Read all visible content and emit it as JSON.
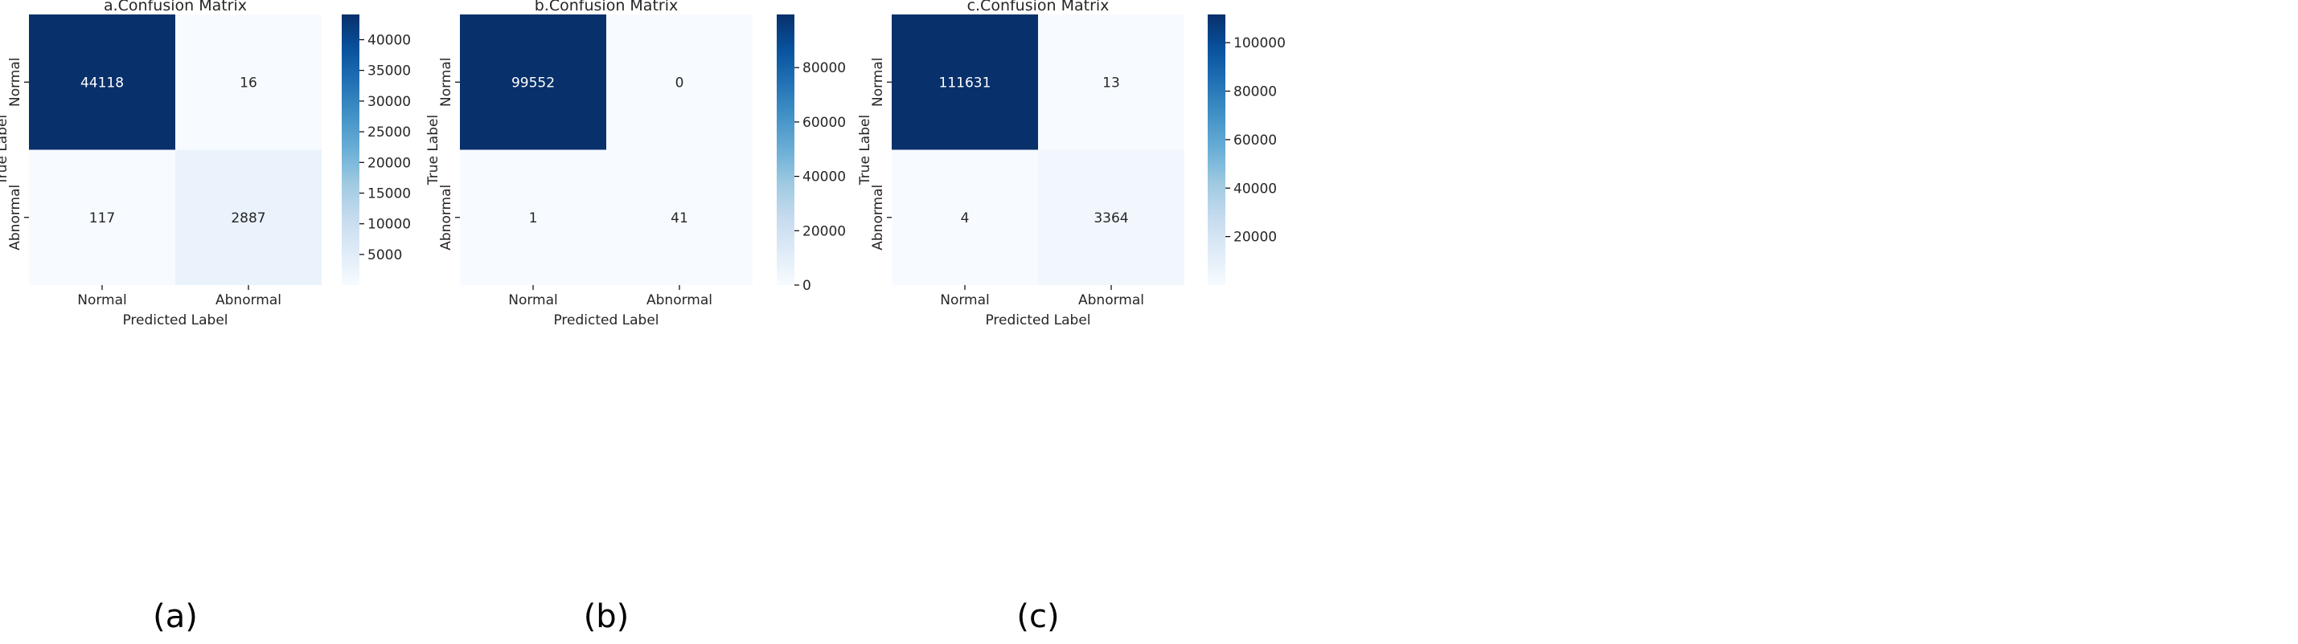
{
  "chart_data": [
    {
      "type": "heatmap",
      "title": "a.Confusion Matrix",
      "panel_label": "(a)",
      "xlabel": "Predicted Label",
      "ylabel": "True Label",
      "x_categories": [
        "Normal",
        "Abnormal"
      ],
      "y_categories": [
        "Normal",
        "Abnormal"
      ],
      "values": [
        [
          44118,
          16
        ],
        [
          117,
          2887
        ]
      ],
      "colormap": "Blues",
      "colorbar": {
        "vmin": 16,
        "vmax": 44118,
        "ticks": [
          5000,
          10000,
          15000,
          20000,
          25000,
          30000,
          35000,
          40000
        ],
        "tick_labels": [
          "5000",
          "10000",
          "15000",
          "20000",
          "25000",
          "30000",
          "35000",
          "40000"
        ]
      }
    },
    {
      "type": "heatmap",
      "title": "b.Confusion Matrix",
      "panel_label": "(b)",
      "xlabel": "Predicted Label",
      "ylabel": "True Label",
      "x_categories": [
        "Normal",
        "Abnormal"
      ],
      "y_categories": [
        "Normal",
        "Abnormal"
      ],
      "values": [
        [
          99552,
          0
        ],
        [
          1,
          41
        ]
      ],
      "colormap": "Blues",
      "colorbar": {
        "vmin": 0,
        "vmax": 99552,
        "ticks": [
          0,
          20000,
          40000,
          60000,
          80000
        ],
        "tick_labels": [
          "0",
          "20000",
          "40000",
          "60000",
          "80000"
        ]
      }
    },
    {
      "type": "heatmap",
      "title": "c.Confusion Matrix",
      "panel_label": "(c)",
      "xlabel": "Predicted Label",
      "ylabel": "True Label",
      "x_categories": [
        "Normal",
        "Abnormal"
      ],
      "y_categories": [
        "Normal",
        "Abnormal"
      ],
      "values": [
        [
          111631,
          13
        ],
        [
          4,
          3364
        ]
      ],
      "colormap": "Blues",
      "colorbar": {
        "vmin": 4,
        "vmax": 111631,
        "ticks": [
          20000,
          40000,
          60000,
          80000,
          100000
        ],
        "tick_labels": [
          "20000",
          "40000",
          "60000",
          "80000",
          "100000"
        ]
      }
    }
  ],
  "colors": {
    "cmap_stops": [
      "#f7fbff",
      "#deebf7",
      "#c6dbef",
      "#9ecae1",
      "#6baed6",
      "#4292c6",
      "#2171b5",
      "#08519c",
      "#08306b"
    ],
    "text_dark": "#262626",
    "text_light": "#ffffff",
    "axis": "#000000"
  }
}
